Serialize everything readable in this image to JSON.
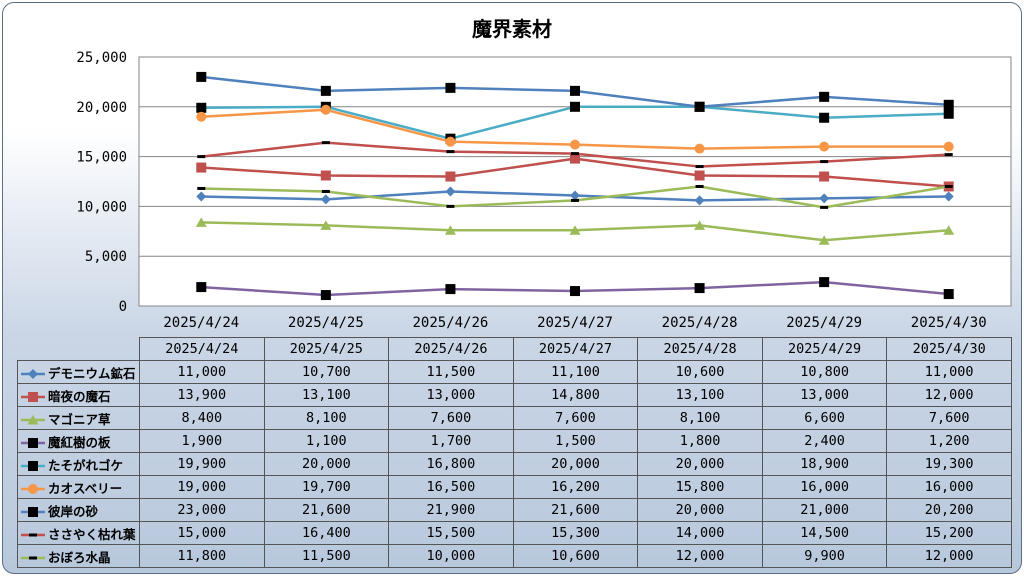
{
  "chart_data": {
    "type": "line",
    "title": "魔界素材",
    "categories": [
      "2025/4/24",
      "2025/4/25",
      "2025/4/26",
      "2025/4/27",
      "2025/4/28",
      "2025/4/29",
      "2025/4/30"
    ],
    "ylim": [
      0,
      25000
    ],
    "yticks": [
      "0",
      "5,000",
      "10,000",
      "15,000",
      "20,000",
      "25,000"
    ],
    "grid": true,
    "legend": "data-table",
    "series": [
      {
        "name": "デモニウム鉱石",
        "color": "#4f81bd",
        "marker": "diamond",
        "values": [
          11000,
          10700,
          11500,
          11100,
          10600,
          10800,
          11000
        ],
        "labels": [
          "11,000",
          "10,700",
          "11,500",
          "11,100",
          "10,600",
          "10,800",
          "11,000"
        ]
      },
      {
        "name": "暗夜の魔石",
        "color": "#c0504d",
        "marker": "square",
        "values": [
          13900,
          13100,
          13000,
          14800,
          13100,
          13000,
          12000
        ],
        "labels": [
          "13,900",
          "13,100",
          "13,000",
          "14,800",
          "13,100",
          "13,000",
          "12,000"
        ]
      },
      {
        "name": "マゴニア草",
        "color": "#9bbb59",
        "marker": "triangle",
        "values": [
          8400,
          8100,
          7600,
          7600,
          8100,
          6600,
          7600
        ],
        "labels": [
          "8,400",
          "8,100",
          "7,600",
          "7,600",
          "8,100",
          "6,600",
          "7,600"
        ]
      },
      {
        "name": "魔紅樹の板",
        "color": "#8064a2",
        "marker": "square-black",
        "values": [
          1900,
          1100,
          1700,
          1500,
          1800,
          2400,
          1200
        ],
        "labels": [
          "1,900",
          "1,100",
          "1,700",
          "1,500",
          "1,800",
          "2,400",
          "1,200"
        ]
      },
      {
        "name": "たそがれゴケ",
        "color": "#4bacc6",
        "marker": "square-black",
        "values": [
          19900,
          20000,
          16800,
          20000,
          20000,
          18900,
          19300
        ],
        "labels": [
          "19,900",
          "20,000",
          "16,800",
          "20,000",
          "20,000",
          "18,900",
          "19,300"
        ]
      },
      {
        "name": "カオスベリー",
        "color": "#f79646",
        "marker": "circle",
        "values": [
          19000,
          19700,
          16500,
          16200,
          15800,
          16000,
          16000
        ],
        "labels": [
          "19,000",
          "19,700",
          "16,500",
          "16,200",
          "15,800",
          "16,000",
          "16,000"
        ]
      },
      {
        "name": "彼岸の砂",
        "color": "#4f81bd",
        "marker": "square-black",
        "values": [
          23000,
          21600,
          21900,
          21600,
          20000,
          21000,
          20200
        ],
        "labels": [
          "23,000",
          "21,600",
          "21,900",
          "21,600",
          "20,000",
          "21,000",
          "20,200"
        ]
      },
      {
        "name": "ささやく枯れ葉",
        "color": "#c0504d",
        "marker": "dash",
        "values": [
          15000,
          16400,
          15500,
          15300,
          14000,
          14500,
          15200
        ],
        "labels": [
          "15,000",
          "16,400",
          "15,500",
          "15,300",
          "14,000",
          "14,500",
          "15,200"
        ]
      },
      {
        "name": "おぼろ水晶",
        "color": "#9bbb59",
        "marker": "dash",
        "values": [
          11800,
          11500,
          10000,
          10600,
          12000,
          9900,
          12000
        ],
        "labels": [
          "11,800",
          "11,500",
          "10,000",
          "10,600",
          "12,000",
          "9,900",
          "12,000"
        ]
      }
    ]
  }
}
